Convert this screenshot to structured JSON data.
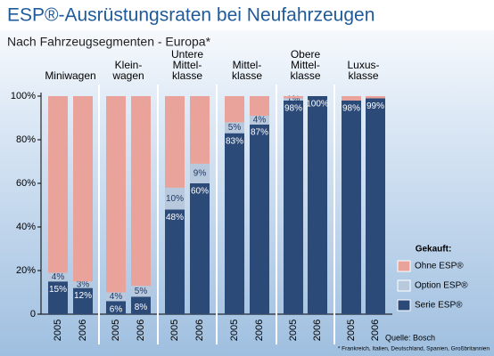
{
  "chart_data": {
    "type": "stacked-bar",
    "title": "ESP®-Ausrüstungsraten bei Neufahrzeugen",
    "subtitle": "Nach Fahrzeugsegmenten - Europa*",
    "groups": [
      [
        "Miniwagen"
      ],
      [
        "Klein-",
        "wagen"
      ],
      [
        "Untere",
        "Mittel-",
        "klasse"
      ],
      [
        "Mittel-",
        "klasse"
      ],
      [
        "Obere",
        "Mittel-",
        "klasse"
      ],
      [
        "Luxus-",
        "klasse"
      ]
    ],
    "categories": [
      "2005",
      "2006",
      "2005",
      "2006",
      "2005",
      "2006",
      "2005",
      "2006",
      "2005",
      "2006",
      "2005",
      "2006"
    ],
    "series": [
      {
        "name": "Serie ESP®",
        "color": "#2c4a78",
        "values": [
          15,
          12,
          6,
          8,
          48,
          60,
          83,
          87,
          98,
          100,
          98,
          99
        ],
        "value_labels": [
          "15%",
          "12%",
          "6%",
          "8%",
          "48%",
          "60%",
          "83%",
          "87%",
          "98%",
          "100%",
          "98%",
          "99%"
        ]
      },
      {
        "name": "Option ESP®",
        "color": "#b9c9dd",
        "values": [
          4,
          3,
          4,
          5,
          10,
          9,
          5,
          4,
          1,
          0,
          0,
          0
        ],
        "value_labels": [
          "4%",
          "3%",
          "4%",
          "5%",
          "10%",
          "9%",
          "5%",
          "4%",
          "1%",
          null,
          null,
          null
        ]
      },
      {
        "name": "Ohne ESP®",
        "color": "#e9a39b",
        "values": [
          81,
          85,
          90,
          87,
          42,
          31,
          12,
          9,
          1,
          0,
          2,
          1
        ]
      }
    ],
    "ylim": [
      0,
      100
    ],
    "yticks": [
      0,
      {
        "value": 20,
        "label": "20%"
      },
      {
        "value": 40,
        "label": "40%"
      },
      {
        "value": 60,
        "label": "60%"
      },
      {
        "value": 80,
        "label": "80%"
      },
      {
        "value": 100,
        "label": "100%"
      }
    ],
    "legend_title": "Gekauft:",
    "source": "Quelle: Bosch",
    "footnote": "* Frankreich, Italien, Deutschland, Spanien, Großbritannien"
  }
}
